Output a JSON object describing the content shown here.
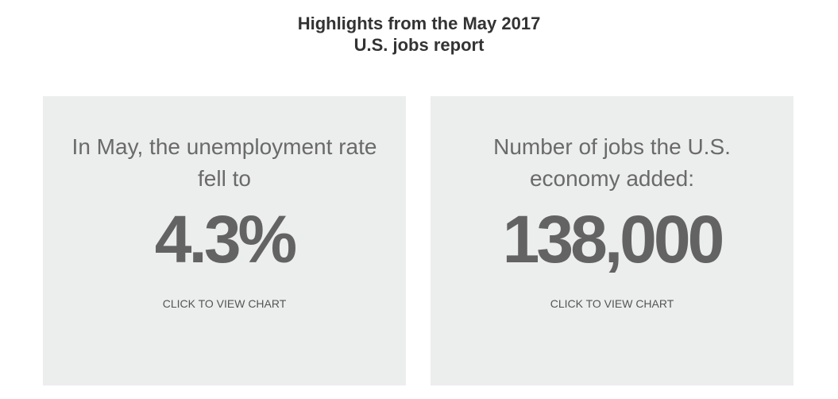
{
  "header": {
    "title_lines": [
      "Highlights from the May 2017",
      "U.S. jobs report"
    ]
  },
  "cards": [
    {
      "description": "In May, the unemployment rate fell to",
      "value": "4.3%",
      "link": "CLICK TO VIEW CHART"
    },
    {
      "description": "Number of jobs the U.S. economy added:",
      "value": "138,000",
      "link": "CLICK TO VIEW CHART"
    }
  ]
}
